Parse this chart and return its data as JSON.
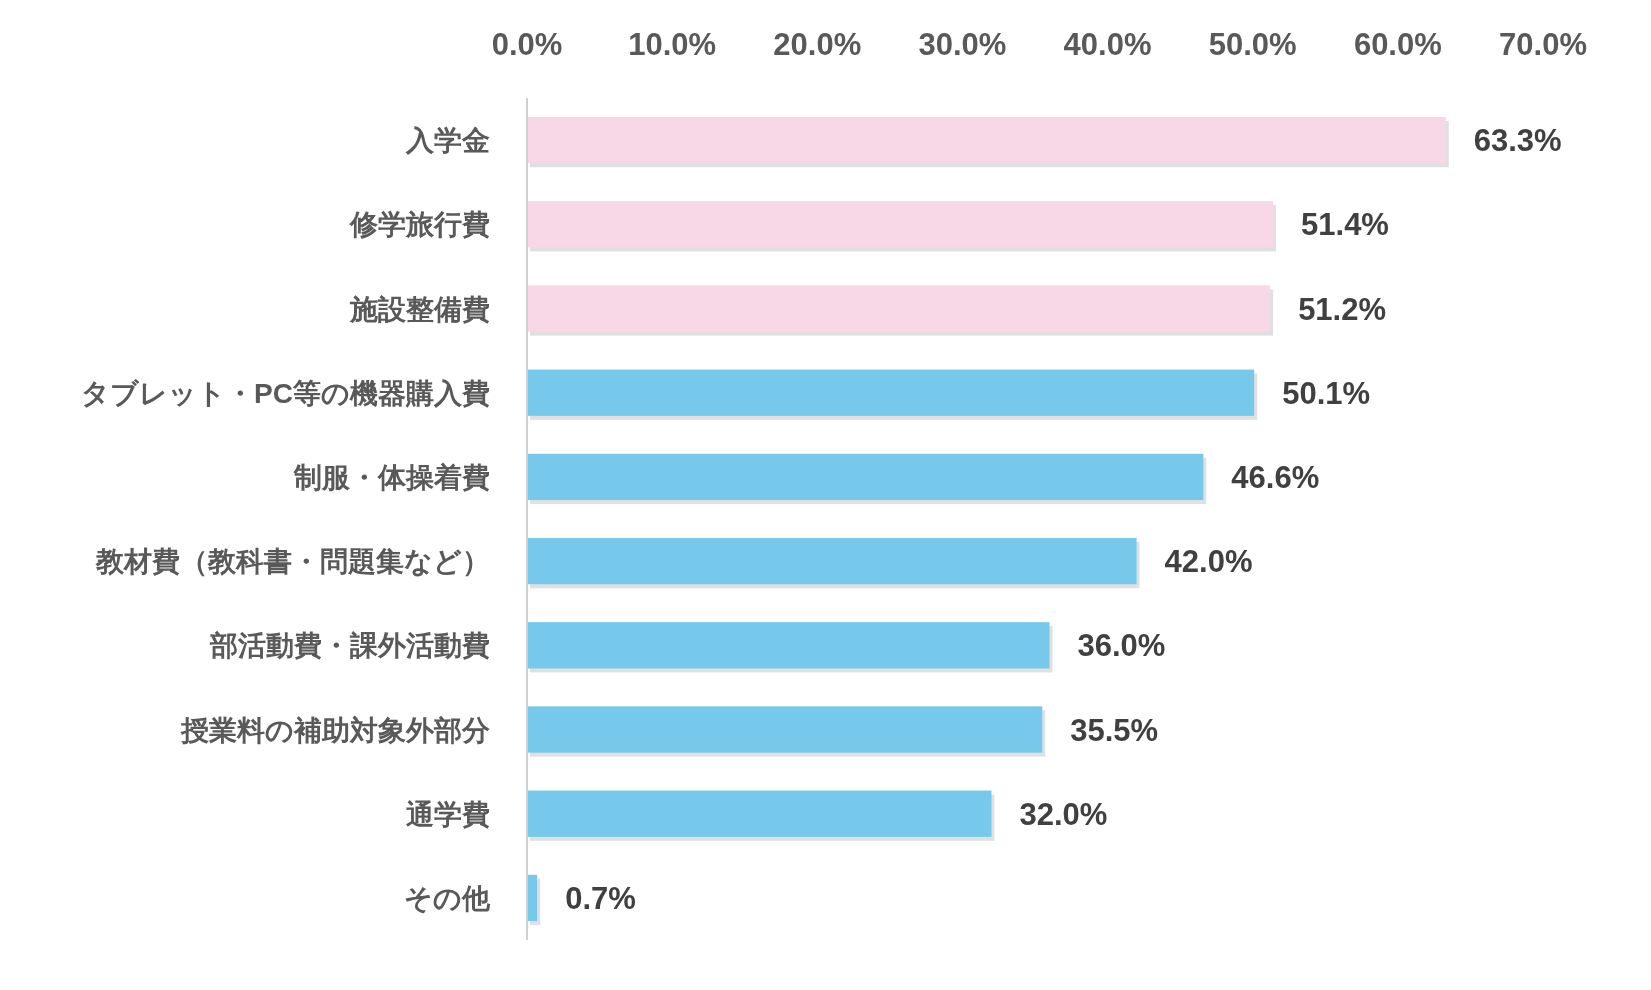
{
  "chart_data": {
    "type": "bar",
    "orientation": "horizontal",
    "categories": [
      "入学金",
      "修学旅行費",
      "施設整備費",
      "タブレット・PC等の機器購入費",
      "制服・体操着費",
      "教材費（教科書・問題集など）",
      "部活動費・課外活動費",
      "授業料の補助対象外部分",
      "通学費",
      "その他"
    ],
    "values": [
      63.3,
      51.4,
      51.2,
      50.1,
      46.6,
      42.0,
      36.0,
      35.5,
      32.0,
      0.7
    ],
    "colors": [
      "#f8d8e7",
      "#f8d8e7",
      "#f8d8e7",
      "#76c9ea",
      "#76c9ea",
      "#76c9ea",
      "#76c9ea",
      "#76c9ea",
      "#76c9ea",
      "#76c9ea"
    ],
    "value_labels": [
      "63.3%",
      "51.4%",
      "51.2%",
      "50.1%",
      "46.6%",
      "42.0%",
      "36.0%",
      "35.5%",
      "32.0%",
      "0.7%"
    ],
    "xlim": [
      0,
      70
    ],
    "xticks": [
      {
        "value": 0,
        "label": "0.0%"
      },
      {
        "value": 10,
        "label": "10.0%"
      },
      {
        "value": 20,
        "label": "20.0%"
      },
      {
        "value": 30,
        "label": "30.0%"
      },
      {
        "value": 40,
        "label": "40.0%"
      },
      {
        "value": 50,
        "label": "50.0%"
      },
      {
        "value": 60,
        "label": "60.0%"
      },
      {
        "value": 70,
        "label": "70.0%"
      }
    ],
    "grid": false
  }
}
